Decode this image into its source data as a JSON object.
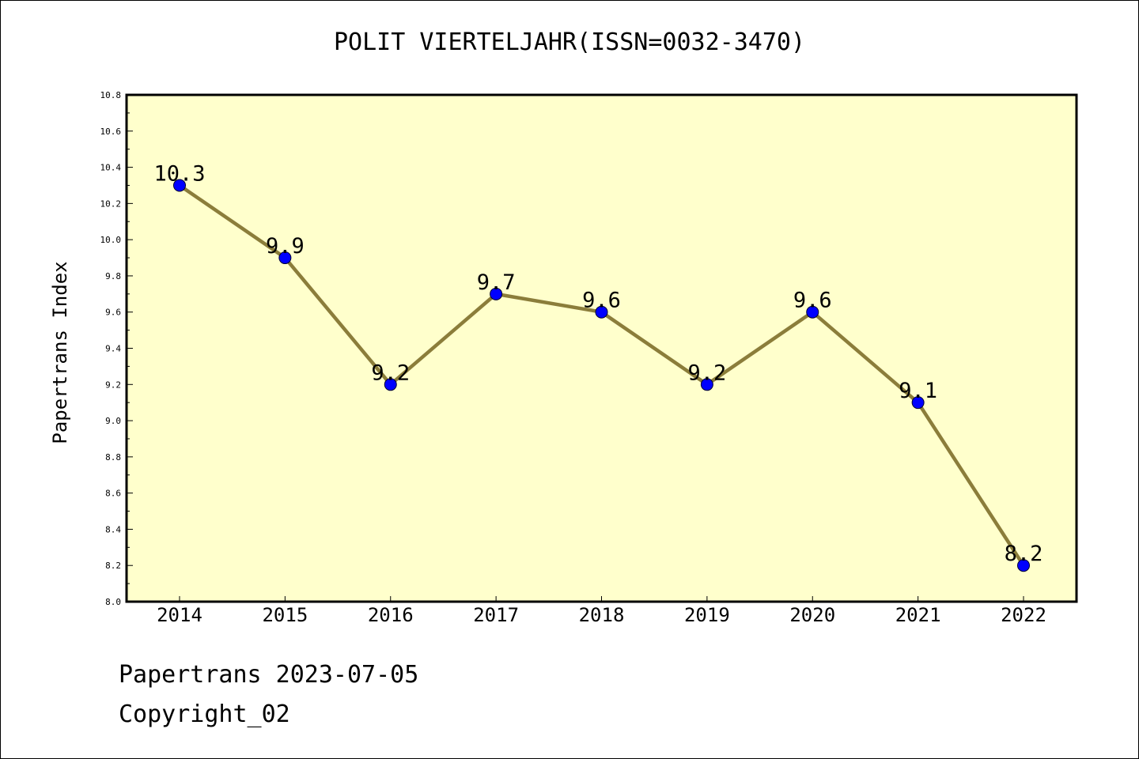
{
  "title": "POLIT VIERTELJAHR(ISSN=0032-3470)",
  "footer": {
    "date_line": "Papertrans 2023-07-05",
    "copyright": "Copyright_02"
  },
  "colors": {
    "plot_background": "#ffffcc",
    "line": "#8b7d3a",
    "marker": "#0000ff"
  },
  "chart_data": {
    "type": "line",
    "title": "POLIT VIERTELJAHR(ISSN=0032-3470)",
    "xlabel": "",
    "ylabel": "Papertrans Index",
    "ylim": [
      8.0,
      10.8
    ],
    "yticks": [
      "8.0",
      "8.2",
      "8.4",
      "8.6",
      "8.8",
      "9.0",
      "9.2",
      "9.4",
      "9.6",
      "9.8",
      "10.0",
      "10.2",
      "10.4",
      "10.6",
      "10.8"
    ],
    "categories": [
      "2014",
      "2015",
      "2016",
      "2017",
      "2018",
      "2019",
      "2020",
      "2021",
      "2022"
    ],
    "series": [
      {
        "values": [
          10.3,
          9.9,
          9.2,
          9.7,
          9.6,
          9.2,
          9.6,
          9.1,
          8.2
        ],
        "labels": [
          "10.3",
          "9.9",
          "9.2",
          "9.7",
          "9.6",
          "9.2",
          "9.6",
          "9.1",
          "8.2"
        ]
      }
    ],
    "grid": false,
    "legend": "none"
  }
}
